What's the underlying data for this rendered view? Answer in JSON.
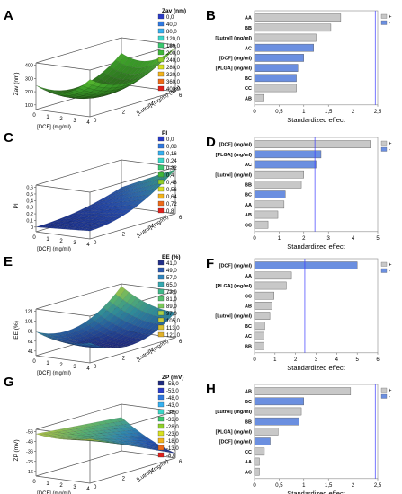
{
  "figure": {
    "panels_3d": [
      {
        "letter": "A",
        "legend_title": "Zav (nm)",
        "legend_entries": [
          "0,0",
          "40,0",
          "80,0",
          "120,0",
          "160,0",
          "200,0",
          "240,0",
          "280,0",
          "320,0",
          "360,0",
          "400,0"
        ],
        "legend_colors": [
          "#2a3bc8",
          "#2f78e0",
          "#35b0f0",
          "#3ad6c8",
          "#3ac870",
          "#3fb83a",
          "#8fcf2a",
          "#d8e020",
          "#f2b21a",
          "#ee6a18",
          "#e0201c"
        ],
        "zlabel": "Zav (nm)",
        "z_ticks": [
          "100",
          "200",
          "300",
          "400"
        ],
        "xlabel": "[DCF] (mg/ml)",
        "x_ticks": [
          "0",
          "1",
          "2",
          "3",
          "4"
        ],
        "ylabel": "[Lutrol] (mg/ml) (mm)",
        "y_ticks": [
          "0",
          "2",
          "4",
          "6"
        ],
        "colormap": [
          "#2a5a18",
          "#2f7a20",
          "#3a9a28",
          "#56b830",
          "#8ccf36"
        ]
      },
      {
        "letter": "C",
        "legend_title": "PI",
        "legend_entries": [
          "0,0",
          "0,08",
          "0,16",
          "0,24",
          "0,32",
          "0,4",
          "0,48",
          "0,56",
          "0,64",
          "0,72",
          "0,8"
        ],
        "legend_colors": [
          "#2a3bc8",
          "#2f78e0",
          "#35b0f0",
          "#3ad6c8",
          "#3ac870",
          "#3fb83a",
          "#8fcf2a",
          "#d8e020",
          "#f2b21a",
          "#ee6a18",
          "#e0201c"
        ],
        "zlabel": "PI",
        "z_ticks": [
          "0",
          "0,1",
          "0,2",
          "0,3",
          "0,4",
          "0,5",
          "0,6"
        ],
        "xlabel": "[DCF] (mg/ml)",
        "x_ticks": [
          "0",
          "1",
          "2",
          "3",
          "4"
        ],
        "ylabel": "[Lutrol] (mg/ml)",
        "y_ticks": [
          "0",
          "2",
          "4",
          "6"
        ],
        "colormap": [
          "#1a2e8a",
          "#2348a8",
          "#2c6aa8",
          "#2f8a8c",
          "#3aa86a"
        ]
      },
      {
        "letter": "E",
        "legend_title": "EE (%)",
        "legend_entries": [
          "41,0",
          "49,0",
          "57,0",
          "65,0",
          "73,0",
          "81,0",
          "89,0",
          "97,0",
          "105,0",
          "113,0",
          "121,0"
        ],
        "legend_colors": [
          "#22308a",
          "#2a58b0",
          "#2f86c0",
          "#36a8b0",
          "#3fb88a",
          "#56c070",
          "#7ac85a",
          "#a8d048",
          "#c8cc38",
          "#d8c030",
          "#e0b028"
        ],
        "zlabel": "EE (%)",
        "z_ticks": [
          "41",
          "61",
          "81",
          "101",
          "121"
        ],
        "xlabel": "[DCF] (mg/ml)",
        "x_ticks": [
          "0",
          "1",
          "2",
          "3",
          "4"
        ],
        "ylabel": "[Lutrol] (mg/ml)",
        "y_ticks": [
          "0",
          "2",
          "4",
          "6"
        ],
        "colormap": [
          "#1e2a80",
          "#26589c",
          "#2f8a98",
          "#56b070",
          "#b8c838"
        ]
      },
      {
        "letter": "G",
        "legend_title": "ZP (mV)",
        "legend_entries": [
          "-58,0",
          "-53,0",
          "-48,0",
          "-43,0",
          "-38,0",
          "-33,0",
          "-28,0",
          "-23,0",
          "-18,0",
          "-13,0",
          "-8,0"
        ],
        "legend_colors": [
          "#1e2a80",
          "#2a3bc8",
          "#2f78e0",
          "#35b0f0",
          "#3ad6c8",
          "#3ac870",
          "#8fcf2a",
          "#d8e020",
          "#f2b21a",
          "#ee6a18",
          "#e0201c"
        ],
        "zlabel": "ZP (mV)",
        "z_ticks": [
          "-16",
          "-26",
          "-36",
          "-46",
          "-56"
        ],
        "xlabel": "[DCF] (mg/ml)",
        "x_ticks": [
          "0",
          "1",
          "2",
          "3",
          "4"
        ],
        "ylabel": "[Lutrol] (mg/ml)",
        "y_ticks": [
          "0",
          "2",
          "4",
          "6"
        ],
        "colormap": [
          "#1e2a80",
          "#2452b0",
          "#2f86b0",
          "#56b070",
          "#c8c83a"
        ]
      }
    ],
    "pareto_common": {
      "xlabel": "Standardized effect",
      "legend_plus": "+",
      "legend_minus": "-",
      "positive_color": "#c8c8c8",
      "negative_color": "#6b8fe0",
      "threshold_color": "#3c3cff"
    }
  },
  "chart_data": [
    {
      "type": "bar",
      "panel": "B",
      "orientation": "horizontal",
      "categories": [
        "AA",
        "BB",
        "[Lutrol] (mg/ml)",
        "AC",
        "[DCF] (mg/ml)",
        "[PLGA] (mg/ml)",
        "BC",
        "CC",
        "AB"
      ],
      "values": [
        1.75,
        1.55,
        1.25,
        1.2,
        1.0,
        0.88,
        0.85,
        0.85,
        0.18
      ],
      "signs": [
        "+",
        "+",
        "+",
        "-",
        "-",
        "-",
        "-",
        "+",
        "+"
      ],
      "xlabel": "Standardized effect",
      "x_ticks": [
        "0",
        "0,5",
        "1",
        "1,5",
        "2",
        "2,5"
      ],
      "xlim": [
        0,
        2.5
      ],
      "threshold": 2.45,
      "legend": [
        "+",
        "-"
      ]
    },
    {
      "type": "bar",
      "panel": "D",
      "orientation": "horizontal",
      "categories": [
        "[DCF] (mg/ml)",
        "[PLGA] (mg/ml)",
        "AC",
        "[Lutrol] (mg/ml)",
        "BB",
        "BC",
        "AA",
        "AB",
        "CC"
      ],
      "values": [
        4.7,
        2.7,
        2.5,
        2.0,
        1.9,
        1.25,
        1.2,
        0.95,
        0.55
      ],
      "signs": [
        "+",
        "-",
        "-",
        "+",
        "+",
        "-",
        "+",
        "+",
        "+"
      ],
      "xlabel": "Standardized effect",
      "x_ticks": [
        "0",
        "1",
        "2",
        "3",
        "4",
        "5"
      ],
      "xlim": [
        0,
        5
      ],
      "threshold": 2.45,
      "legend": [
        "+",
        "-"
      ]
    },
    {
      "type": "bar",
      "panel": "F",
      "orientation": "horizontal",
      "categories": [
        "[DCF] (mg/ml)",
        "AA",
        "[PLGA] (mg/ml)",
        "CC",
        "AB",
        "[Lutrol] (mg/ml)",
        "BC",
        "AC",
        "BB"
      ],
      "values": [
        5.0,
        1.8,
        1.55,
        0.95,
        0.85,
        0.75,
        0.5,
        0.45,
        0.45
      ],
      "signs": [
        "-",
        "+",
        "+",
        "+",
        "+",
        "+",
        "+",
        "+",
        "+"
      ],
      "xlabel": "Standardized effect",
      "x_ticks": [
        "0",
        "1",
        "2",
        "3",
        "4",
        "5",
        "6"
      ],
      "xlim": [
        0,
        6
      ],
      "threshold": 2.45,
      "legend": [
        "+",
        "-"
      ]
    },
    {
      "type": "bar",
      "panel": "H",
      "orientation": "horizontal",
      "categories": [
        "AB",
        "BC",
        "[Lutrol] (mg/ml)",
        "BB",
        "[PLGA] (mg/ml)",
        "[DCF] (mg/ml)",
        "CC",
        "AA",
        "AC"
      ],
      "values": [
        1.95,
        1.0,
        0.95,
        0.9,
        0.48,
        0.32,
        0.2,
        0.1,
        0.1
      ],
      "signs": [
        "+",
        "-",
        "+",
        "-",
        "+",
        "-",
        "+",
        "+",
        "+"
      ],
      "xlabel": "Standardized effect",
      "x_ticks": [
        "0",
        "0,5",
        "1",
        "1,5",
        "2",
        "2,5"
      ],
      "xlim": [
        0,
        2.5
      ],
      "threshold": 2.45,
      "legend": [
        "+",
        "-"
      ]
    }
  ]
}
